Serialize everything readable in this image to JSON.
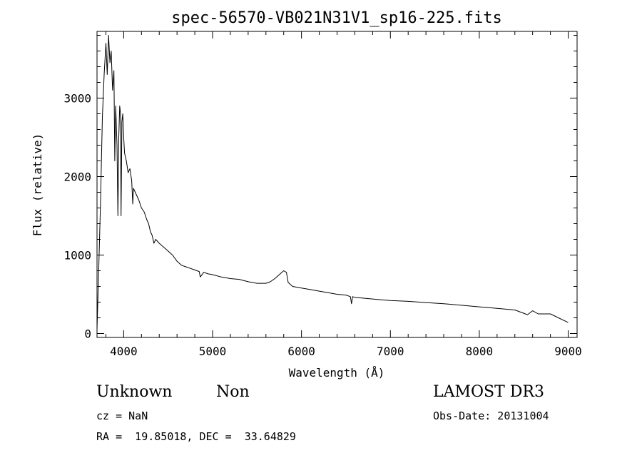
{
  "chart_data": {
    "type": "line",
    "title": "spec-56570-VB021N31V1_sp16-225.fits",
    "xlabel": "Wavelength (Å)",
    "ylabel": "Flux (relative)",
    "xlim": [
      3700,
      9100
    ],
    "ylim": [
      -50,
      3850
    ],
    "xticks": [
      4000,
      5000,
      6000,
      7000,
      8000,
      9000
    ],
    "yticks": [
      0,
      1000,
      2000,
      3000
    ],
    "grid": false,
    "series": [
      {
        "x": [
          3700,
          3720,
          3740,
          3760,
          3780,
          3800,
          3815,
          3830,
          3845,
          3860,
          3875,
          3890,
          3900,
          3910,
          3925,
          3935,
          3945,
          3955,
          3965,
          3970,
          3980,
          3990,
          4000,
          4010,
          4030,
          4050,
          4070,
          4090,
          4102,
          4110,
          4130,
          4150,
          4170,
          4200,
          4230,
          4260,
          4280,
          4300,
          4320,
          4340,
          4360,
          4400,
          4450,
          4500,
          4550,
          4600,
          4650,
          4700,
          4750,
          4800,
          4850,
          4861,
          4900,
          4950,
          5000,
          5100,
          5200,
          5300,
          5400,
          5500,
          5600,
          5650,
          5700,
          5750,
          5800,
          5830,
          5850,
          5880,
          5900,
          6000,
          6100,
          6200,
          6300,
          6400,
          6500,
          6550,
          6563,
          6575,
          6600,
          6700,
          6800,
          6900,
          7000,
          7200,
          7400,
          7600,
          7800,
          8000,
          8200,
          8400,
          8542,
          8600,
          8662,
          8800,
          9000
        ],
        "y": [
          50,
          850,
          1700,
          2750,
          3300,
          3700,
          3300,
          3800,
          3450,
          3600,
          3100,
          3350,
          2200,
          2900,
          2400,
          1500,
          2500,
          2900,
          2800,
          1500,
          2700,
          2800,
          2500,
          2300,
          2200,
          2050,
          2100,
          1950,
          1650,
          1850,
          1800,
          1750,
          1700,
          1600,
          1550,
          1450,
          1400,
          1300,
          1250,
          1150,
          1200,
          1150,
          1100,
          1050,
          1000,
          920,
          870,
          850,
          830,
          810,
          790,
          720,
          780,
          760,
          750,
          720,
          700,
          690,
          660,
          640,
          640,
          660,
          700,
          750,
          800,
          780,
          650,
          620,
          600,
          580,
          560,
          540,
          520,
          500,
          490,
          470,
          380,
          470,
          460,
          450,
          440,
          430,
          420,
          410,
          395,
          380,
          360,
          340,
          320,
          300,
          240,
          290,
          250,
          250,
          140
        ]
      }
    ]
  },
  "annotations": {
    "object_class": "Unknown",
    "object_subclass": "Non",
    "survey": "LAMOST DR3",
    "redshift": "cz = NaN",
    "obs_date": "Obs-Date: 20131004",
    "coords": "RA =  19.85018, DEC =  33.64829"
  }
}
